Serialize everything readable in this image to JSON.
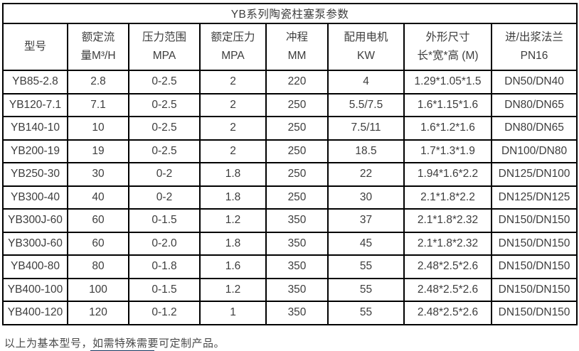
{
  "page": {
    "title": "YB系列陶瓷柱塞泵参数",
    "footer_note": "以上为基本型号，如需特殊需要可定制产品。"
  },
  "table": {
    "columns": [
      {
        "line1": "型号",
        "line2": ""
      },
      {
        "line1": "额定流",
        "line2": "量M³/H"
      },
      {
        "line1": "压力范围",
        "line2": "MPA"
      },
      {
        "line1": "额定压力",
        "line2": "MPA"
      },
      {
        "line1": "冲程",
        "line2": "MM"
      },
      {
        "line1": "配用电机",
        "line2": "KW"
      },
      {
        "line1": "外形尺寸",
        "line2": "长*宽*高 (M)"
      },
      {
        "line1": "进/出浆法兰",
        "line2": "PN16"
      }
    ],
    "rows": [
      [
        "YB85-2.8",
        "2.8",
        "0-2.5",
        "2",
        "220",
        "4",
        "1.29*1.05*1.5",
        "DN50/DN40"
      ],
      [
        "YB120-7.1",
        "7.1",
        "0-2.5",
        "2",
        "250",
        "5.5/7.5",
        "1.6*1.15*1.6",
        "DN80/DN65"
      ],
      [
        "YB140-10",
        "10",
        "0-2.5",
        "2",
        "250",
        "7.5/11",
        "1.6*1.2*1.6",
        "DN80/DN65"
      ],
      [
        "YB200-19",
        "19",
        "0-2.5",
        "2",
        "250",
        "18.5",
        "1.7*1.3*1.9",
        "DN100/DN80"
      ],
      [
        "YB250-30",
        "30",
        "0-2",
        "1.8",
        "250",
        "22",
        "1.94*1.6*2.2",
        "DN125/DN100"
      ],
      [
        "YB300-40",
        "40",
        "0-2",
        "1.8",
        "250",
        "30",
        "2.1*1.8*2.2",
        "DN125/DN125"
      ],
      [
        "YB300J-60",
        "60",
        "0-1.5",
        "1.2",
        "350",
        "37",
        "2.1*1.8*2.32",
        "DN150/DN150"
      ],
      [
        "YB300J-60",
        "60",
        "0-2.0",
        "1.8",
        "350",
        "45",
        "2.1*1.8*2.32",
        "DN150/DN150"
      ],
      [
        "YB400-80",
        "80",
        "0-1.8",
        "1.6",
        "350",
        "55",
        "2.48*2.5*2.6",
        "DN150/DN150"
      ],
      [
        "YB400-100",
        "100",
        "0-1.5",
        "1.2",
        "350",
        "55",
        "2.48*2.5*2.6",
        "DN150/DN150"
      ],
      [
        "YB400-120",
        "120",
        "0-1.2",
        "1",
        "350",
        "55",
        "2.48*2.5*2.6",
        "DN150/DN150"
      ]
    ]
  },
  "colors": {
    "border": "#000000",
    "text": "#3d3d3d",
    "accent_line": "#17375e"
  }
}
